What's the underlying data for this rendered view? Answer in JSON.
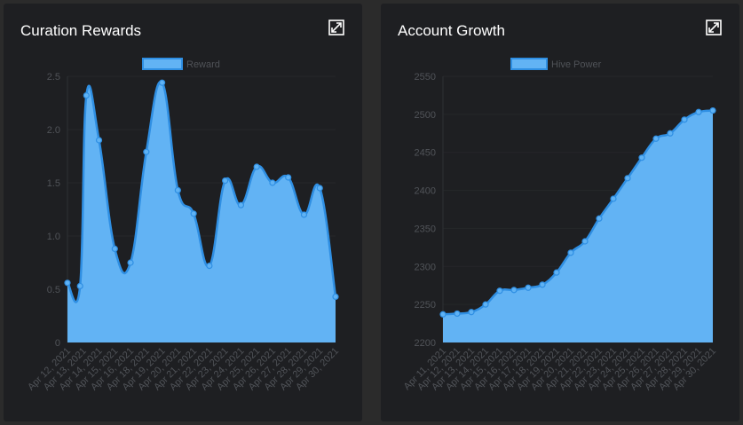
{
  "panels": [
    {
      "title": "Curation Rewards",
      "expand_icon": "expand-icon"
    },
    {
      "title": "Account Growth",
      "expand_icon": "expand-icon"
    }
  ],
  "colors": {
    "panel_bg": "#1e1f22",
    "page_bg": "#2b2b2b",
    "area_fill": "#62b3f4",
    "line": "#2f8fe3",
    "point": "#5fb2f4",
    "tick_text": "#505358",
    "legend_text": "#505358",
    "title_text": "#ffffff"
  },
  "chart_data": [
    {
      "type": "area",
      "title": "",
      "legend": [
        "Reward"
      ],
      "legend_position": "top",
      "xlabel": "",
      "ylabel": "",
      "ylim": [
        0,
        2.5
      ],
      "yticks": [
        0,
        0.5,
        1.0,
        1.5,
        2.0,
        2.5
      ],
      "ytick_labels": [
        "0",
        "0.5",
        "1.0",
        "1.5",
        "2.0",
        "2.5"
      ],
      "grid": true,
      "curve": "smooth",
      "categories": [
        "Apr 12, 2021",
        "Apr 13, 2021",
        "Apr 14, 2021",
        "Apr 15, 2021",
        "Apr 16, 2021",
        "Apr 18, 2021",
        "Apr 19, 2021",
        "Apr 20, 2021",
        "Apr 21, 2021",
        "Apr 22, 2021",
        "Apr 23, 2021",
        "Apr 24, 2021",
        "Apr 25, 2021",
        "Apr 26, 2021",
        "Apr 27, 2021",
        "Apr 28, 2021",
        "Apr 29, 2021",
        "Apr 30, 2021"
      ],
      "series": [
        {
          "name": "Reward",
          "values": [
            0.56,
            2.32,
            1.9,
            0.88,
            0.75,
            1.79,
            2.44,
            1.43,
            1.21,
            0.72,
            1.52,
            1.29,
            1.65,
            1.5,
            1.55,
            1.2,
            1.45,
            0.43
          ]
        }
      ],
      "points_x": [
        0,
        1.2,
        2,
        3,
        4,
        5,
        6,
        7,
        8,
        9,
        10,
        11,
        12,
        13,
        14,
        15,
        16,
        17
      ],
      "extra_first_point": {
        "x": 0.8,
        "value": 0.53
      }
    },
    {
      "type": "area",
      "title": "",
      "legend": [
        "Hive Power"
      ],
      "legend_position": "top",
      "xlabel": "",
      "ylabel": "",
      "ylim": [
        2200,
        2550
      ],
      "yticks": [
        2200,
        2250,
        2300,
        2350,
        2400,
        2450,
        2500,
        2550
      ],
      "ytick_labels": [
        "2200",
        "2250",
        "2300",
        "2350",
        "2400",
        "2450",
        "2500",
        "2550"
      ],
      "grid": true,
      "curve": "smooth",
      "categories": [
        "Apr 11, 2021",
        "Apr 12, 2021",
        "Apr 13, 2021",
        "Apr 14, 2021",
        "Apr 15, 2021",
        "Apr 16, 2021",
        "Apr 17, 2021",
        "Apr 18, 2021",
        "Apr 19, 2021",
        "Apr 20, 2021",
        "Apr 21, 2021",
        "Apr 22, 2021",
        "Apr 23, 2021",
        "Apr 24, 2021",
        "Apr 25, 2021",
        "Apr 26, 2021",
        "Apr 27, 2021",
        "Apr 28, 2021",
        "Apr 29, 2021",
        "Apr 30, 2021"
      ],
      "series": [
        {
          "name": "Hive Power",
          "values": [
            2237,
            2238,
            2240,
            2250,
            2268,
            2269,
            2272,
            2276,
            2292,
            2318,
            2333,
            2363,
            2389,
            2416,
            2443,
            2468,
            2475,
            2493,
            2503,
            2505
          ]
        }
      ]
    }
  ]
}
